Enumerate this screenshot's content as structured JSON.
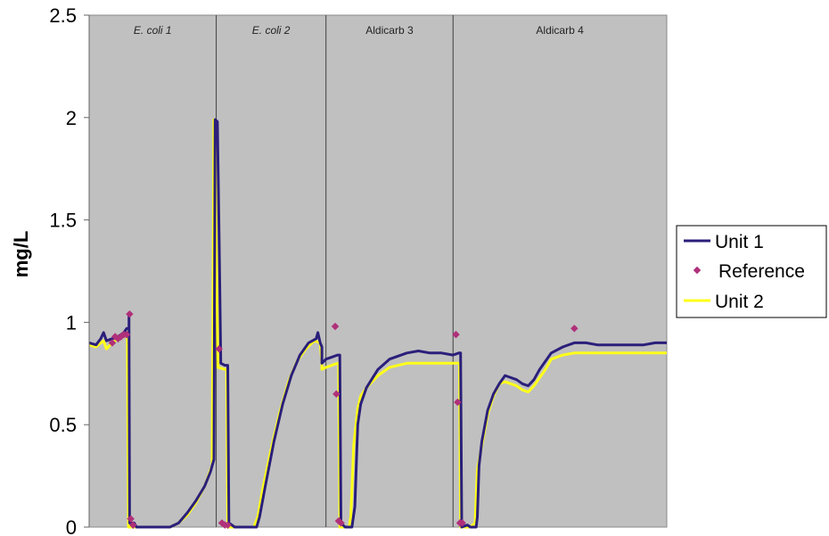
{
  "chart_data": {
    "type": "line",
    "title": "",
    "xlabel": "",
    "ylabel": "mg/L",
    "ylim": [
      0,
      2.5
    ],
    "yticks": [
      "0",
      "0.5",
      "1",
      "1.5",
      "2",
      "2.5"
    ],
    "xlim": [
      0,
      100
    ],
    "grid": false,
    "legend_position": "right",
    "plot_background": "#c0c0c0",
    "segments": [
      {
        "label": "E. coli 1",
        "start": 0,
        "end": 22
      },
      {
        "label": "E. coli 2",
        "start": 22,
        "end": 41
      },
      {
        "label": "Aldicarb 3",
        "start": 41,
        "end": 63
      },
      {
        "label": "Aldicarb 4",
        "start": 63,
        "end": 100
      }
    ],
    "series": [
      {
        "name": "Unit 1",
        "color": "#2a1f7a",
        "style": "line",
        "points": [
          [
            0,
            0.9
          ],
          [
            1.2,
            0.89
          ],
          [
            2,
            0.92
          ],
          [
            2.5,
            0.95
          ],
          [
            3,
            0.91
          ],
          [
            4,
            0.92
          ],
          [
            5,
            0.93
          ],
          [
            6,
            0.95
          ],
          [
            6.5,
            0.97
          ],
          [
            6.9,
            0.97
          ],
          [
            6.9,
            1.03
          ],
          [
            7,
            0.02
          ],
          [
            7.8,
            0.02
          ],
          [
            8.2,
            0
          ],
          [
            10,
            0
          ],
          [
            12,
            0
          ],
          [
            14,
            0
          ],
          [
            15.5,
            0.02
          ],
          [
            17,
            0.07
          ],
          [
            18.5,
            0.13
          ],
          [
            20,
            0.2
          ],
          [
            21,
            0.27
          ],
          [
            21.6,
            0.33
          ],
          [
            21.8,
            1.99
          ],
          [
            22.2,
            1.98
          ],
          [
            22.5,
            1.42
          ],
          [
            22.8,
            0.8
          ],
          [
            23.5,
            0.79
          ],
          [
            24,
            0.79
          ],
          [
            24.2,
            0.02
          ],
          [
            25.2,
            0
          ],
          [
            26,
            0
          ],
          [
            27,
            0
          ],
          [
            28,
            0
          ],
          [
            29,
            0
          ],
          [
            29.5,
            0.05
          ],
          [
            30.5,
            0.2
          ],
          [
            32,
            0.42
          ],
          [
            33.5,
            0.6
          ],
          [
            35,
            0.74
          ],
          [
            36.5,
            0.84
          ],
          [
            38,
            0.9
          ],
          [
            39.3,
            0.92
          ],
          [
            39.6,
            0.95
          ],
          [
            40,
            0.9
          ],
          [
            40.3,
            0.88
          ],
          [
            40.3,
            0.8
          ],
          [
            41,
            0.82
          ],
          [
            42,
            0.83
          ],
          [
            43,
            0.84
          ],
          [
            43.4,
            0.84
          ],
          [
            43.6,
            0.02
          ],
          [
            44.3,
            0
          ],
          [
            45,
            0
          ],
          [
            45.5,
            0
          ],
          [
            46,
            0.1
          ],
          [
            46.5,
            0.5
          ],
          [
            47,
            0.6
          ],
          [
            48,
            0.68
          ],
          [
            50,
            0.77
          ],
          [
            52,
            0.82
          ],
          [
            55,
            0.85
          ],
          [
            57,
            0.86
          ],
          [
            59,
            0.85
          ],
          [
            61,
            0.85
          ],
          [
            63,
            0.84
          ],
          [
            64,
            0.85
          ],
          [
            64.3,
            0.85
          ],
          [
            64.5,
            0
          ],
          [
            65.5,
            0.01
          ],
          [
            66,
            0
          ],
          [
            67,
            0
          ],
          [
            67.2,
            0.05
          ],
          [
            67.5,
            0.3
          ],
          [
            68,
            0.42
          ],
          [
            69,
            0.57
          ],
          [
            70,
            0.65
          ],
          [
            71,
            0.7
          ],
          [
            72,
            0.74
          ],
          [
            73,
            0.73
          ],
          [
            74,
            0.72
          ],
          [
            75,
            0.7
          ],
          [
            76,
            0.69
          ],
          [
            77,
            0.72
          ],
          [
            78,
            0.77
          ],
          [
            79,
            0.81
          ],
          [
            80,
            0.85
          ],
          [
            82,
            0.88
          ],
          [
            84,
            0.9
          ],
          [
            86,
            0.9
          ],
          [
            88,
            0.89
          ],
          [
            90,
            0.89
          ],
          [
            92,
            0.89
          ],
          [
            94,
            0.89
          ],
          [
            96,
            0.89
          ],
          [
            98,
            0.9
          ],
          [
            100,
            0.9
          ]
        ]
      },
      {
        "name": "Reference",
        "color": "#b0307a",
        "style": "markers",
        "points": [
          [
            4,
            0.9
          ],
          [
            4.5,
            0.93
          ],
          [
            5,
            0.92
          ],
          [
            5.5,
            0.93
          ],
          [
            6,
            0.94
          ],
          [
            6.5,
            0.94
          ],
          [
            7,
            1.04
          ],
          [
            7.2,
            0.04
          ],
          [
            7.6,
            0.01
          ],
          [
            22.5,
            0.87
          ],
          [
            23,
            0.02
          ],
          [
            23.5,
            0.01
          ],
          [
            24,
            0.01
          ],
          [
            42.6,
            0.98
          ],
          [
            42.8,
            0.65
          ],
          [
            43.2,
            0.03
          ],
          [
            43.6,
            0.02
          ],
          [
            63.5,
            0.94
          ],
          [
            63.8,
            0.61
          ],
          [
            64.2,
            0.02
          ],
          [
            64.6,
            0.02
          ],
          [
            84,
            0.97
          ]
        ]
      },
      {
        "name": "Unit 2",
        "color": "#ffff1a",
        "style": "line",
        "points": [
          [
            0,
            0.89
          ],
          [
            1.2,
            0.88
          ],
          [
            2,
            0.9
          ],
          [
            2.5,
            0.91
          ],
          [
            3,
            0.87
          ],
          [
            4,
            0.9
          ],
          [
            5,
            0.92
          ],
          [
            6,
            0.93
          ],
          [
            6.5,
            0.95
          ],
          [
            6.6,
            0.95
          ],
          [
            6.8,
            0
          ],
          [
            7.2,
            0
          ],
          [
            8,
            0
          ],
          [
            10,
            0
          ],
          [
            12,
            0
          ],
          [
            14,
            0
          ],
          [
            15.5,
            0.02
          ],
          [
            17,
            0.06
          ],
          [
            18.5,
            0.12
          ],
          [
            20,
            0.2
          ],
          [
            21,
            0.28
          ],
          [
            21.3,
            0.3
          ],
          [
            21.6,
            1.99
          ],
          [
            21.8,
            1.9
          ],
          [
            22,
            1.38
          ],
          [
            22.3,
            0.78
          ],
          [
            23.5,
            0.77
          ],
          [
            23.8,
            0.77
          ],
          [
            24,
            0
          ],
          [
            25.5,
            0
          ],
          [
            27,
            0
          ],
          [
            28.5,
            0
          ],
          [
            29.2,
            0.05
          ],
          [
            30,
            0.18
          ],
          [
            31.5,
            0.38
          ],
          [
            33,
            0.56
          ],
          [
            34.5,
            0.71
          ],
          [
            36,
            0.81
          ],
          [
            37.5,
            0.87
          ],
          [
            39,
            0.91
          ],
          [
            40,
            0.9
          ],
          [
            40.3,
            0.8
          ],
          [
            40.3,
            0.77
          ],
          [
            41,
            0.78
          ],
          [
            42,
            0.79
          ],
          [
            43,
            0.8
          ],
          [
            43.2,
            0.8
          ],
          [
            43.4,
            0
          ],
          [
            44.3,
            0
          ],
          [
            45,
            0
          ],
          [
            45.3,
            0.05
          ],
          [
            45.8,
            0.4
          ],
          [
            46.5,
            0.58
          ],
          [
            47,
            0.64
          ],
          [
            48,
            0.68
          ],
          [
            50,
            0.74
          ],
          [
            52,
            0.78
          ],
          [
            55,
            0.8
          ],
          [
            58,
            0.8
          ],
          [
            61,
            0.8
          ],
          [
            63,
            0.8
          ],
          [
            64.1,
            0.8
          ],
          [
            64.3,
            0
          ],
          [
            65.5,
            0
          ],
          [
            66,
            0
          ],
          [
            66.8,
            0.02
          ],
          [
            67.2,
            0.28
          ],
          [
            68,
            0.4
          ],
          [
            69,
            0.55
          ],
          [
            70,
            0.64
          ],
          [
            71,
            0.7
          ],
          [
            72,
            0.71
          ],
          [
            73,
            0.7
          ],
          [
            74,
            0.69
          ],
          [
            75,
            0.67
          ],
          [
            76,
            0.66
          ],
          [
            77,
            0.69
          ],
          [
            78,
            0.73
          ],
          [
            79,
            0.77
          ],
          [
            80,
            0.82
          ],
          [
            82,
            0.84
          ],
          [
            84,
            0.85
          ],
          [
            86,
            0.85
          ],
          [
            88,
            0.85
          ],
          [
            90,
            0.85
          ],
          [
            92,
            0.85
          ],
          [
            94,
            0.85
          ],
          [
            96,
            0.85
          ],
          [
            98,
            0.85
          ],
          [
            100,
            0.85
          ]
        ]
      }
    ]
  }
}
